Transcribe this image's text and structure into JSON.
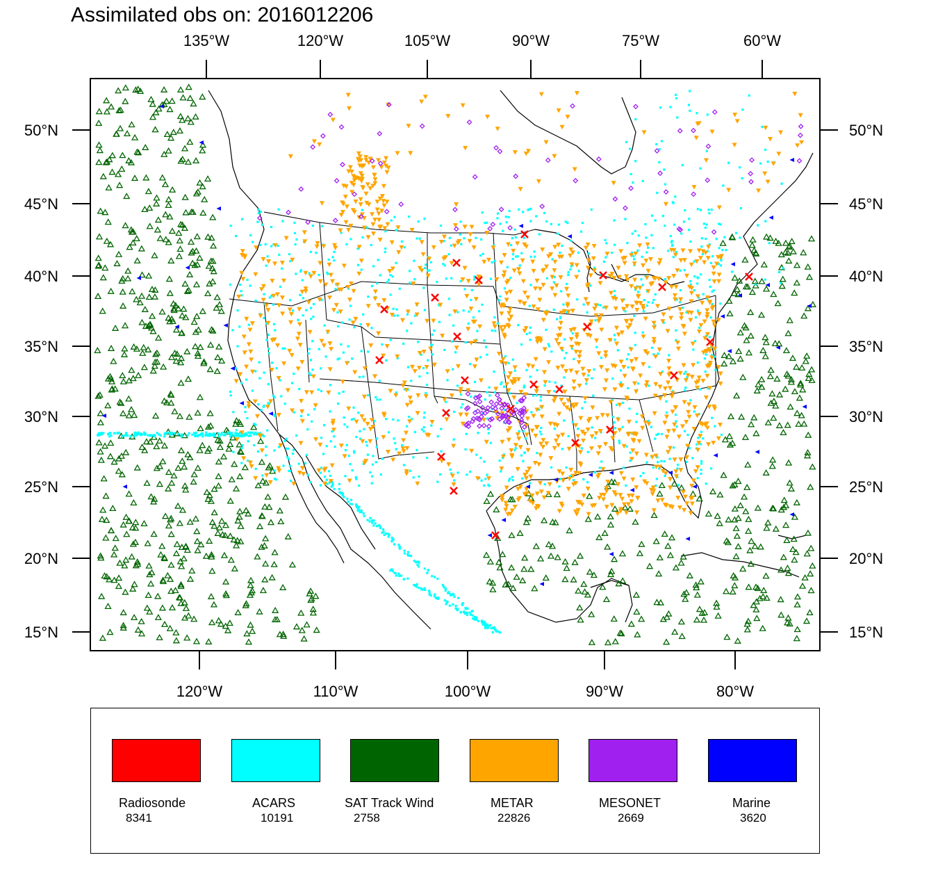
{
  "title": "Assimilated obs on: 2016012206",
  "map": {
    "top_lon_labels": [
      "135°W",
      "120°W",
      "105°W",
      "90°W",
      "75°W",
      "60°W"
    ],
    "bottom_lon_labels": [
      "120°W",
      "110°W",
      "100°W",
      "90°W",
      "80°W"
    ],
    "lat_labels": [
      "50°N",
      "45°N",
      "40°N",
      "35°N",
      "30°N",
      "25°N",
      "20°N",
      "15°N"
    ],
    "land_color": "#ffffff",
    "boundary_color": "#000000"
  },
  "legend": {
    "items": [
      {
        "name": "Radiosonde",
        "count": "8341",
        "color": "#ff0000",
        "marker": "cross"
      },
      {
        "name": "ACARS",
        "count": "10191",
        "color": "#00ffff",
        "marker": "square-dot"
      },
      {
        "name": "SAT Track Wind",
        "count": "2758",
        "color": "#006400",
        "marker": "triangle-up"
      },
      {
        "name": "METAR",
        "count": "22826",
        "color": "#ffa500",
        "marker": "triangle-down"
      },
      {
        "name": "MESONET",
        "count": "2669",
        "color": "#a020f0",
        "marker": "diamond"
      },
      {
        "name": "Marine",
        "count": "3620",
        "color": "#0000ff",
        "marker": "triangle-left"
      }
    ]
  }
}
